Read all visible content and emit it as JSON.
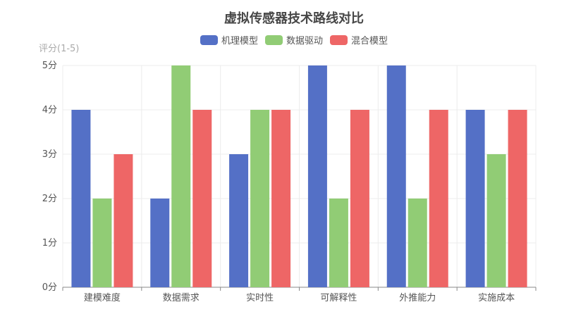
{
  "chart_data": {
    "type": "bar",
    "title": "虚拟传感器技术路线对比",
    "ylabel": "评分(1-5)",
    "xlabel": "",
    "categories": [
      "建模难度",
      "数据需求",
      "实时性",
      "可解释性",
      "外推能力",
      "实施成本"
    ],
    "series": [
      {
        "name": "机理模型",
        "color": "#5470c6",
        "values": [
          4,
          2,
          3,
          5,
          5,
          4
        ]
      },
      {
        "name": "数据驱动",
        "color": "#91cc75",
        "values": [
          2,
          5,
          4,
          2,
          2,
          3
        ]
      },
      {
        "name": "混合模型",
        "color": "#ee6666",
        "values": [
          3,
          4,
          4,
          4,
          4,
          4
        ]
      }
    ],
    "ylim": [
      0,
      5
    ],
    "yticks": [
      "0分",
      "1分",
      "2分",
      "3分",
      "4分",
      "5分"
    ],
    "grid": true,
    "legend_position": "top-center"
  }
}
